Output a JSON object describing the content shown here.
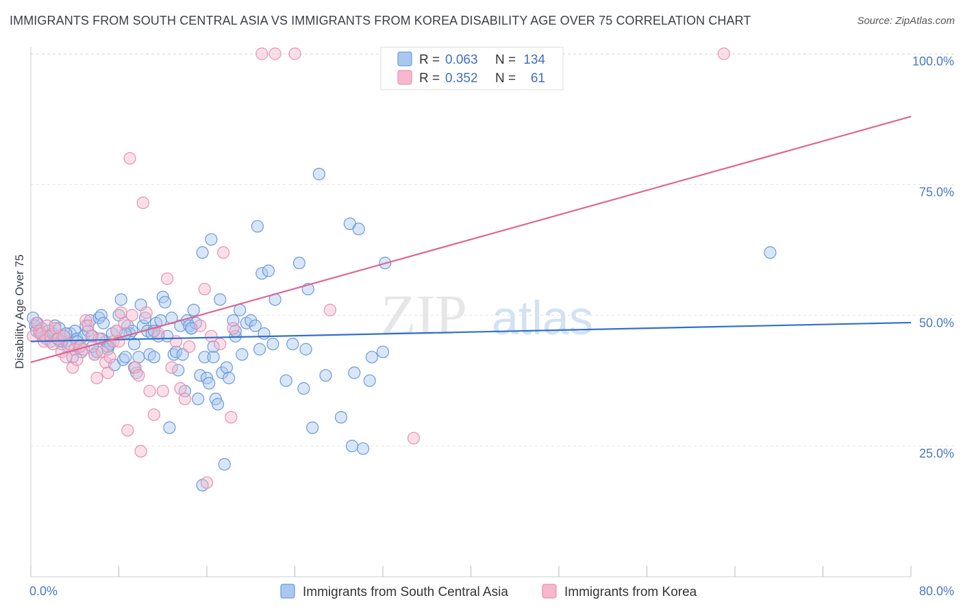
{
  "header": {
    "title": "IMMIGRANTS FROM SOUTH CENTRAL ASIA VS IMMIGRANTS FROM KOREA DISABILITY AGE OVER 75 CORRELATION CHART",
    "source": "Source: ZipAtlas.com"
  },
  "watermark": {
    "zip": "ZIP",
    "atlas": "atlas"
  },
  "colors": {
    "blue_fill": "#a8c8f0",
    "blue_stroke": "#6a9ad8",
    "blue_line": "#2f6fcf",
    "pink_fill": "#f6b8cc",
    "pink_stroke": "#e890ad",
    "pink_line": "#e0648f",
    "tick_text": "#4a78c2",
    "grid": "#e2e2e2"
  },
  "legend": {
    "r_label": "R =",
    "n_label": "N =",
    "series": [
      {
        "name": "Immigrants from South Central Asia",
        "r": "0.063",
        "n": "134"
      },
      {
        "name": "Immigrants from Korea",
        "r": "0.352",
        "n": "61"
      }
    ]
  },
  "chart_data": {
    "type": "scatter",
    "title": "IMMIGRANTS FROM SOUTH CENTRAL ASIA VS IMMIGRANTS FROM KOREA DISABILITY AGE OVER 75 CORRELATION CHART",
    "xlabel": "",
    "ylabel": "Disability Age Over 75",
    "xlim": [
      0,
      80
    ],
    "ylim": [
      0,
      105
    ],
    "x_tick_labels": [
      "0.0%",
      "80.0%"
    ],
    "y_ticks": [
      25,
      50,
      75,
      100
    ],
    "y_tick_labels": [
      "25.0%",
      "50.0%",
      "75.0%",
      "100.0%"
    ],
    "grid": true,
    "series": [
      {
        "name": "Immigrants from South Central Asia",
        "trend": {
          "x": [
            0,
            80
          ],
          "y": [
            45.0,
            48.6
          ]
        },
        "points": [
          [
            0.2,
            49.5
          ],
          [
            0.4,
            48.0
          ],
          [
            0.5,
            47.0
          ],
          [
            0.6,
            48.5
          ],
          [
            0.8,
            46.5
          ],
          [
            1.0,
            47.5
          ],
          [
            1.2,
            46.0
          ],
          [
            1.4,
            45.5
          ],
          [
            1.6,
            47.0
          ],
          [
            1.8,
            45.0
          ],
          [
            2.0,
            46.5
          ],
          [
            2.2,
            48.0
          ],
          [
            2.4,
            45.5
          ],
          [
            2.6,
            47.5
          ],
          [
            2.8,
            44.5
          ],
          [
            3.0,
            46.0
          ],
          [
            3.2,
            45.0
          ],
          [
            3.4,
            44.0
          ],
          [
            3.6,
            46.5
          ],
          [
            3.8,
            42.0
          ],
          [
            4.0,
            47.0
          ],
          [
            4.2,
            45.5
          ],
          [
            4.4,
            44.0
          ],
          [
            4.6,
            43.0
          ],
          [
            4.8,
            46.0
          ],
          [
            5.0,
            48.0
          ],
          [
            5.2,
            47.0
          ],
          [
            5.4,
            49.0
          ],
          [
            5.6,
            46.0
          ],
          [
            5.8,
            42.5
          ],
          [
            6.0,
            43.0
          ],
          [
            6.2,
            49.5
          ],
          [
            6.4,
            50.0
          ],
          [
            6.6,
            48.5
          ],
          [
            6.8,
            45.0
          ],
          [
            7.0,
            43.5
          ],
          [
            7.2,
            44.5
          ],
          [
            7.4,
            46.5
          ],
          [
            7.6,
            40.5
          ],
          [
            7.8,
            47.0
          ],
          [
            8.0,
            50.0
          ],
          [
            8.2,
            53.0
          ],
          [
            8.4,
            41.5
          ],
          [
            8.6,
            42.0
          ],
          [
            8.8,
            48.0
          ],
          [
            9.0,
            46.5
          ],
          [
            9.2,
            47.0
          ],
          [
            9.4,
            44.5
          ],
          [
            9.6,
            39.0
          ],
          [
            9.8,
            42.0
          ],
          [
            10.0,
            52.0
          ],
          [
            10.2,
            48.0
          ],
          [
            10.4,
            49.5
          ],
          [
            10.6,
            47.0
          ],
          [
            10.8,
            42.5
          ],
          [
            11.0,
            46.5
          ],
          [
            11.2,
            42.0
          ],
          [
            11.4,
            48.5
          ],
          [
            11.6,
            46.0
          ],
          [
            11.8,
            49.0
          ],
          [
            12.0,
            53.5
          ],
          [
            12.2,
            52.5
          ],
          [
            12.4,
            46.0
          ],
          [
            12.6,
            28.5
          ],
          [
            12.8,
            49.5
          ],
          [
            13.0,
            42.5
          ],
          [
            13.2,
            43.0
          ],
          [
            13.4,
            39.5
          ],
          [
            13.6,
            48.0
          ],
          [
            13.8,
            42.5
          ],
          [
            14.0,
            35.5
          ],
          [
            14.2,
            49.0
          ],
          [
            14.4,
            48.0
          ],
          [
            14.6,
            47.5
          ],
          [
            14.8,
            51.0
          ],
          [
            15.0,
            48.5
          ],
          [
            15.2,
            34.0
          ],
          [
            15.4,
            38.5
          ],
          [
            15.6,
            62.0
          ],
          [
            15.8,
            42.0
          ],
          [
            16.0,
            38.0
          ],
          [
            16.2,
            37.0
          ],
          [
            16.4,
            64.5
          ],
          [
            16.6,
            44.0
          ],
          [
            16.8,
            34.0
          ],
          [
            17.0,
            33.0
          ],
          [
            17.2,
            53.0
          ],
          [
            17.4,
            39.0
          ],
          [
            17.6,
            21.5
          ],
          [
            17.8,
            40.0
          ],
          [
            18.0,
            38.0
          ],
          [
            18.4,
            49.0
          ],
          [
            18.6,
            46.0
          ],
          [
            19.0,
            51.0
          ],
          [
            19.2,
            42.5
          ],
          [
            19.6,
            48.5
          ],
          [
            20.0,
            49.0
          ],
          [
            20.6,
            67.0
          ],
          [
            20.8,
            43.5
          ],
          [
            21.0,
            58.0
          ],
          [
            21.2,
            46.5
          ],
          [
            21.6,
            58.5
          ],
          [
            22.0,
            44.5
          ],
          [
            22.2,
            53.0
          ],
          [
            23.2,
            37.5
          ],
          [
            23.8,
            44.5
          ],
          [
            24.4,
            60.0
          ],
          [
            24.8,
            36.0
          ],
          [
            25.0,
            43.5
          ],
          [
            25.2,
            55.0
          ],
          [
            25.6,
            28.5
          ],
          [
            26.2,
            77.0
          ],
          [
            26.8,
            38.5
          ],
          [
            28.2,
            30.5
          ],
          [
            29.0,
            67.5
          ],
          [
            29.2,
            25.0
          ],
          [
            29.4,
            39.0
          ],
          [
            29.8,
            66.5
          ],
          [
            30.2,
            24.5
          ],
          [
            30.8,
            37.5
          ],
          [
            31.0,
            42.0
          ],
          [
            32.0,
            43.0
          ],
          [
            32.2,
            60.0
          ],
          [
            67.2,
            62.0
          ],
          [
            2.8,
            45.0
          ],
          [
            4.2,
            45.0
          ],
          [
            5.6,
            44.0
          ],
          [
            6.4,
            45.5
          ],
          [
            7.0,
            44.0
          ],
          [
            8.6,
            46.5
          ],
          [
            11.2,
            47.0
          ],
          [
            14.6,
            47.5
          ],
          [
            18.6,
            47.0
          ],
          [
            20.4,
            48.0
          ],
          [
            15.6,
            17.5
          ],
          [
            16.6,
            42.0
          ],
          [
            9.4,
            40.0
          ],
          [
            3.2,
            46.5
          ]
        ]
      },
      {
        "name": "Immigrants from Korea",
        "trend": {
          "x": [
            0,
            80
          ],
          "y": [
            41.0,
            88.0
          ]
        },
        "points": [
          [
            0.2,
            46.0
          ],
          [
            0.5,
            48.5
          ],
          [
            0.8,
            47.0
          ],
          [
            1.0,
            46.5
          ],
          [
            1.2,
            45.0
          ],
          [
            1.5,
            48.0
          ],
          [
            1.8,
            46.0
          ],
          [
            2.0,
            44.5
          ],
          [
            2.2,
            47.5
          ],
          [
            2.5,
            45.5
          ],
          [
            2.8,
            43.0
          ],
          [
            3.0,
            46.0
          ],
          [
            3.2,
            42.0
          ],
          [
            3.5,
            44.5
          ],
          [
            3.8,
            40.0
          ],
          [
            4.0,
            43.5
          ],
          [
            4.2,
            41.5
          ],
          [
            4.5,
            44.0
          ],
          [
            4.8,
            43.5
          ],
          [
            5.0,
            49.0
          ],
          [
            5.2,
            48.0
          ],
          [
            5.5,
            46.0
          ],
          [
            5.8,
            42.5
          ],
          [
            6.0,
            38.0
          ],
          [
            6.2,
            45.5
          ],
          [
            6.5,
            43.0
          ],
          [
            6.8,
            41.0
          ],
          [
            7.0,
            39.0
          ],
          [
            7.2,
            42.0
          ],
          [
            7.5,
            45.0
          ],
          [
            7.8,
            47.0
          ],
          [
            8.0,
            45.0
          ],
          [
            8.2,
            50.5
          ],
          [
            8.5,
            48.5
          ],
          [
            8.8,
            28.0
          ],
          [
            9.0,
            80.0
          ],
          [
            9.2,
            50.0
          ],
          [
            9.5,
            40.0
          ],
          [
            9.8,
            38.5
          ],
          [
            10.0,
            24.0
          ],
          [
            10.2,
            71.5
          ],
          [
            10.5,
            50.5
          ],
          [
            10.8,
            35.5
          ],
          [
            11.2,
            31.0
          ],
          [
            11.6,
            46.5
          ],
          [
            12.0,
            35.5
          ],
          [
            12.4,
            57.0
          ],
          [
            12.8,
            40.0
          ],
          [
            13.2,
            45.0
          ],
          [
            13.6,
            36.0
          ],
          [
            14.0,
            34.0
          ],
          [
            14.4,
            44.0
          ],
          [
            15.4,
            48.0
          ],
          [
            15.8,
            55.0
          ],
          [
            16.0,
            18.0
          ],
          [
            16.4,
            46.0
          ],
          [
            17.2,
            44.5
          ],
          [
            17.5,
            62.0
          ],
          [
            18.2,
            30.5
          ],
          [
            18.4,
            47.5
          ],
          [
            21.0,
            100.0
          ],
          [
            22.2,
            100.0
          ],
          [
            24.0,
            100.0
          ],
          [
            27.2,
            51.0
          ],
          [
            34.8,
            26.5
          ],
          [
            63.0,
            100.0
          ]
        ]
      }
    ]
  }
}
